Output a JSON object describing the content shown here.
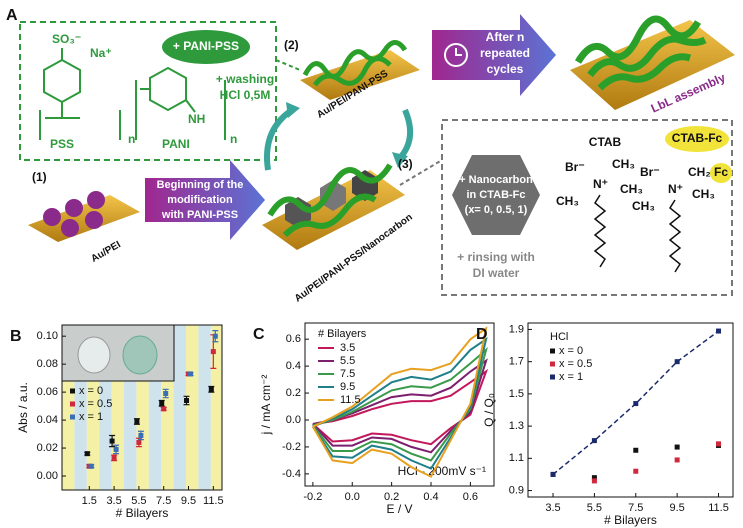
{
  "schematic": {
    "label": "A",
    "so3": "SO₃⁻",
    "na": "Na⁺",
    "pss": "PSS",
    "pani": "PANI",
    "n1": "n",
    "n2": "n",
    "nh": "NH",
    "badge": "+ PANI-PSS",
    "washing": [
      "+ washing",
      "HCl 0,5M"
    ],
    "step2": "(2)",
    "film2": "Au/PEI/PANI-PSS",
    "cycles": [
      "After n",
      "repeated",
      "cycles"
    ],
    "lbl": "LbL assembly",
    "step1": "(1)",
    "film1": "Au/PEI",
    "begin": [
      "Beginning of the",
      "modification",
      "with PANI-PSS"
    ],
    "step3": "(3)",
    "film3": "Au/PEI/PANI-PSS/Nanocarbon",
    "nano": [
      "+ Nanocarbon",
      "in CTAB-Fc",
      "(x= 0, 0.5, 1)"
    ],
    "rinse": [
      "+ rinsing with",
      "DI water"
    ],
    "ctab": "CTAB",
    "ctabfc": "CTAB-Fc",
    "br": [
      "Br⁻",
      "Br⁻"
    ],
    "nplus": [
      "N⁺",
      "N⁺"
    ],
    "ctab_groups": [
      "CH₃",
      "CH₃",
      "CH₃"
    ],
    "ctabfc_groups": [
      "CH₂",
      "Fc",
      "CH₃",
      "CH₃"
    ]
  },
  "chart_data": [
    {
      "type": "scatter",
      "panel": "B",
      "x_label": "# Bilayers",
      "y_label": "Abs / a.u.",
      "legend": "upper left",
      "x": [
        1.5,
        3.5,
        5.5,
        7.5,
        9.5,
        11.5
      ],
      "series": [
        {
          "name": "x = 0",
          "color": "#111111",
          "values": [
            0.016,
            0.025,
            0.039,
            0.052,
            0.054,
            0.062
          ],
          "errors": [
            0.001,
            0.004,
            0.002,
            0.002,
            0.003,
            0.002
          ]
        },
        {
          "name": "x = 0.5",
          "color": "#d0283c",
          "values": [
            0.007,
            0.013,
            0.024,
            0.048,
            0.073,
            0.089
          ],
          "errors": [
            0.001,
            0.002,
            0.003,
            0.001,
            0.001,
            0.012
          ]
        },
        {
          "name": "x = 1",
          "color": "#3a6fb5",
          "values": [
            0.007,
            0.019,
            0.029,
            0.059,
            0.073,
            0.1
          ],
          "errors": [
            0.001,
            0.003,
            0.003,
            0.003,
            0.001,
            0.004
          ]
        }
      ],
      "xlim": [
        -0.7,
        12.2
      ],
      "ylim": [
        -0.01,
        0.108
      ],
      "xticks": [
        1.5,
        3.5,
        5.5,
        7.5,
        9.5,
        11.5
      ],
      "yticks": [
        {
          "value": 0,
          "label": "0.00"
        },
        {
          "value": 0.02,
          "label": "0.02"
        },
        {
          "value": 0.04,
          "label": "0.04"
        },
        {
          "value": 0.06,
          "label": "0.06"
        },
        {
          "value": 0.08,
          "label": "0.08"
        },
        {
          "value": 0.1,
          "label": "0.10"
        }
      ]
    },
    {
      "type": "line",
      "panel": "C",
      "x_label": "E / V",
      "y_label": "j / mA cm⁻²",
      "legend_title": "# Bilayers",
      "annotation": "HCl - 200mV s⁻¹",
      "legend": "upper left",
      "x": [
        -0.2,
        -0.1,
        0,
        0.1,
        0.2,
        0.3,
        0.4,
        0.5,
        0.6,
        0.68,
        0.6,
        0.5,
        0.4,
        0.3,
        0.2,
        0.1,
        0,
        -0.1,
        -0.2
      ],
      "series": [
        {
          "name": "3.5",
          "color": "#c2185b",
          "values": [
            -0.03,
            -0.01,
            0.03,
            0.08,
            0.12,
            0.14,
            0.14,
            0.18,
            0.28,
            0.36,
            0.04,
            -0.06,
            -0.18,
            -0.15,
            -0.11,
            -0.1,
            -0.15,
            -0.16,
            -0.03
          ]
        },
        {
          "name": "5.5",
          "color": "#7b1f6e",
          "values": [
            -0.03,
            0,
            0.05,
            0.11,
            0.17,
            0.19,
            0.18,
            0.24,
            0.36,
            0.44,
            0.06,
            -0.08,
            -0.24,
            -0.2,
            -0.14,
            -0.13,
            -0.19,
            -0.19,
            -0.03
          ]
        },
        {
          "name": "7.5",
          "color": "#3a9a4a",
          "values": [
            -0.04,
            0,
            0.06,
            0.14,
            0.22,
            0.25,
            0.24,
            0.3,
            0.42,
            0.52,
            0.08,
            -0.1,
            -0.3,
            -0.25,
            -0.18,
            -0.16,
            -0.23,
            -0.23,
            -0.04
          ]
        },
        {
          "name": "9.5",
          "color": "#1f7f8a",
          "values": [
            -0.05,
            0.01,
            0.08,
            0.18,
            0.28,
            0.32,
            0.3,
            0.36,
            0.52,
            0.6,
            0.1,
            -0.13,
            -0.36,
            -0.3,
            -0.22,
            -0.19,
            -0.28,
            -0.27,
            -0.05
          ]
        },
        {
          "name": "11.5",
          "color": "#e8a020",
          "values": [
            -0.05,
            0.02,
            0.1,
            0.22,
            0.34,
            0.38,
            0.37,
            0.42,
            0.6,
            0.68,
            0.12,
            -0.15,
            -0.42,
            -0.35,
            -0.25,
            -0.22,
            -0.32,
            -0.3,
            -0.05
          ]
        }
      ],
      "xlim": [
        -0.24,
        0.72
      ],
      "ylim": [
        -0.49,
        0.72
      ],
      "xticks": [
        -0.2,
        {
          "value": 0,
          "label": "0.0"
        },
        0.2,
        0.4,
        0.6
      ],
      "yticks": [
        -0.4,
        -0.2,
        {
          "value": 0,
          "label": "0.0"
        },
        0.2,
        0.4,
        0.6
      ]
    },
    {
      "type": "scatter",
      "panel": "D",
      "x_label": "# Bilayers",
      "y_label": "Q / Q₀",
      "legend_title": "HCl",
      "legend": "upper left",
      "x": [
        3.5,
        5.5,
        7.5,
        9.5,
        11.5
      ],
      "series": [
        {
          "name": "x = 0",
          "color": "#111111",
          "values": [
            1.0,
            0.98,
            1.15,
            1.17,
            1.18
          ]
        },
        {
          "name": "x = 0.5",
          "color": "#d0283c",
          "values": [
            1.0,
            0.96,
            1.02,
            1.09,
            1.19
          ]
        },
        {
          "name": "x = 1",
          "color": "#1a2a6c",
          "values": [
            1.0,
            1.21,
            1.44,
            1.7,
            1.89
          ],
          "line_style": "dashed"
        }
      ],
      "xlim": [
        2.29,
        12.2
      ],
      "ylim": [
        0.86,
        1.94
      ],
      "xticks": [
        3.5,
        5.5,
        7.5,
        9.5,
        11.5
      ],
      "yticks": [
        0.9,
        1.1,
        1.3,
        1.5,
        1.7,
        1.9
      ]
    }
  ]
}
